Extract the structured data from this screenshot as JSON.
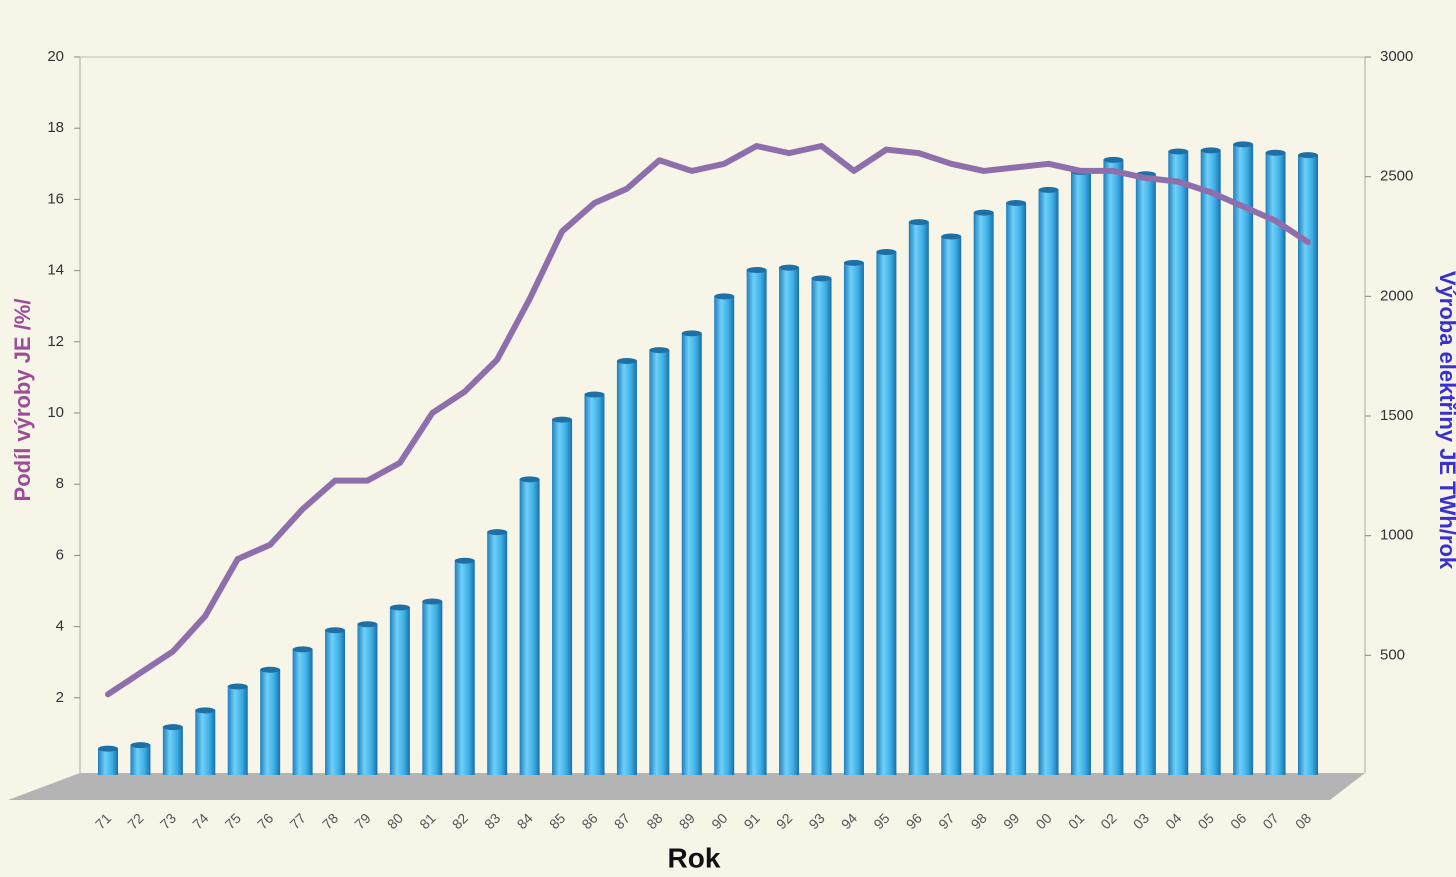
{
  "chart_data": {
    "type": "bar-line",
    "x_label": "Rok",
    "y_label": "Podíl výroby JE /%/",
    "y2_label": "Výroba elektřiny JE TWh/rok",
    "categories": [
      "71",
      "72",
      "73",
      "74",
      "75",
      "76",
      "77",
      "78",
      "79",
      "80",
      "81",
      "82",
      "83",
      "84",
      "85",
      "86",
      "87",
      "88",
      "89",
      "90",
      "91",
      "92",
      "93",
      "94",
      "95",
      "96",
      "97",
      "98",
      "99",
      "00",
      "01",
      "02",
      "03",
      "04",
      "05",
      "06",
      "07",
      "08"
    ],
    "series": [
      {
        "type": "bar",
        "axis": "y2",
        "color": "#3daee6",
        "values": [
          110,
          125,
          200,
          270,
          370,
          440,
          525,
          605,
          630,
          700,
          725,
          895,
          1015,
          1235,
          1485,
          1590,
          1730,
          1775,
          1845,
          2000,
          2110,
          2120,
          2075,
          2140,
          2185,
          2310,
          2250,
          2350,
          2390,
          2445,
          2520,
          2570,
          2510,
          2605,
          2610,
          2635,
          2600,
          2590
        ]
      },
      {
        "type": "line",
        "axis": "y",
        "color": "#8e6fac",
        "values": [
          2.1,
          2.7,
          3.3,
          4.3,
          5.9,
          6.3,
          7.3,
          8.1,
          8.1,
          8.6,
          10.0,
          10.6,
          11.5,
          13.2,
          15.1,
          15.9,
          16.3,
          17.1,
          16.8,
          17.0,
          17.5,
          17.3,
          17.5,
          16.8,
          17.4,
          17.3,
          17.0,
          16.8,
          16.9,
          17.0,
          16.8,
          16.8,
          16.6,
          16.5,
          16.2,
          15.8,
          15.4,
          14.8
        ]
      }
    ],
    "ylim": [
      0,
      20
    ],
    "yticks": [
      2,
      4,
      6,
      8,
      10,
      12,
      14,
      16,
      18,
      20
    ],
    "y2lim": [
      0,
      3000
    ],
    "y2ticks": [
      500,
      1000,
      1500,
      2000,
      2500,
      3000
    ]
  }
}
